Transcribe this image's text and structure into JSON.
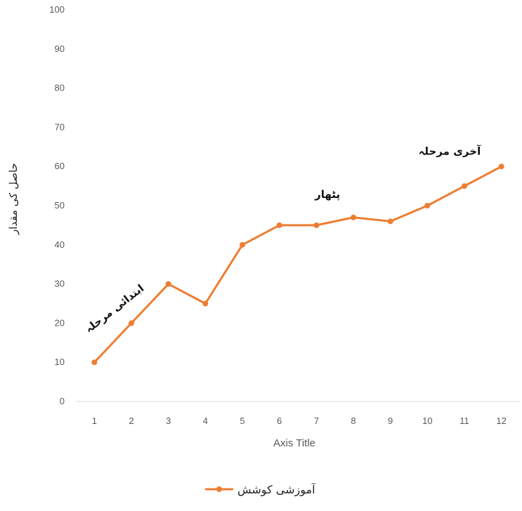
{
  "chart_data": {
    "type": "line",
    "x": [
      1,
      2,
      3,
      4,
      5,
      6,
      7,
      8,
      9,
      10,
      11,
      12
    ],
    "series": [
      {
        "name": "آموزشی کوشش",
        "values": [
          10,
          20,
          30,
          25,
          40,
          45,
          45,
          47,
          46,
          50,
          55,
          60
        ]
      }
    ],
    "xlabel": "Axis Title",
    "ylabel": "حاصل کی مقدار",
    "ylim": [
      0,
      100
    ],
    "yticks": [
      0,
      10,
      20,
      30,
      40,
      50,
      60,
      70,
      80,
      90,
      100
    ],
    "grid": false,
    "legend": "bottom",
    "annotations": [
      {
        "text": "ابتدائی مرحلہ",
        "x": 1.6,
        "y": 23
      },
      {
        "text": "پٹھار",
        "x": 7.3,
        "y": 52
      },
      {
        "text": "آخری مرحلہ",
        "x": 10.6,
        "y": 63
      }
    ],
    "line_color": "#ED7D31"
  }
}
